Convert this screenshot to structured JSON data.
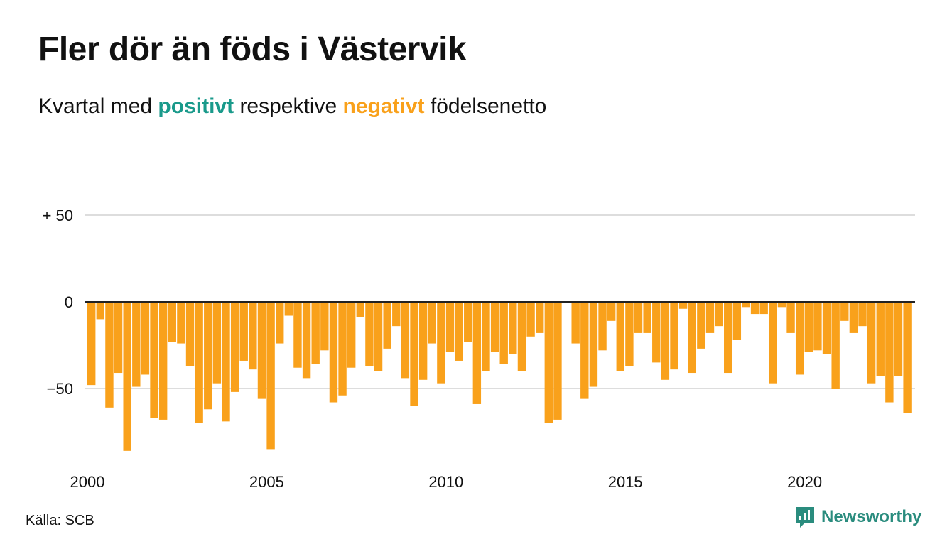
{
  "title": "Fler dör än föds i Västervik",
  "subtitle": {
    "prefix": "Kvartal med",
    "positive": "positivt",
    "middle": "respektive",
    "negative": "negativt",
    "suffix": "födelsenetto"
  },
  "source": "Källa: SCB",
  "brand": {
    "name": "Newsworthy",
    "icon": "newsworthy-logo-icon"
  },
  "colors": {
    "positive": "#1a9a8b",
    "negative": "#f9a11b",
    "brand": "#2a8c7e",
    "grid": "#dddddd",
    "axis": "#222222",
    "text": "#111111"
  },
  "chart_data": {
    "type": "bar",
    "title": "Fler dör än föds i Västervik",
    "subtitle": "Kvartal med positivt respektive negativt födelsenetto",
    "xlabel": "",
    "ylabel": "",
    "ylim": [
      -90,
      50
    ],
    "yticks": [
      {
        "value": 50,
        "label": "+ 50"
      },
      {
        "value": 0,
        "label": "0"
      },
      {
        "value": -50,
        "label": "−50"
      }
    ],
    "xticks": [
      {
        "value": 2000,
        "label": "2000"
      },
      {
        "value": 2005,
        "label": "2005"
      },
      {
        "value": 2010,
        "label": "2010"
      },
      {
        "value": 2015,
        "label": "2015"
      },
      {
        "value": 2020,
        "label": "2020"
      }
    ],
    "x_start_year": 2000,
    "periods_per_year": 4,
    "grid": true,
    "values": [
      -48,
      -10,
      -61,
      -41,
      -86,
      -49,
      -42,
      -67,
      -68,
      -23,
      -24,
      -37,
      -70,
      -62,
      -47,
      -69,
      -52,
      -34,
      -39,
      -56,
      -85,
      -24,
      -8,
      -38,
      -44,
      -36,
      -28,
      -58,
      -54,
      -38,
      -9,
      -37,
      -40,
      -27,
      -14,
      -44,
      -60,
      -45,
      -24,
      -47,
      -29,
      -34,
      -23,
      -59,
      -40,
      -29,
      -36,
      -30,
      -40,
      -20,
      -18,
      -70,
      -68,
      0,
      -24,
      -56,
      -49,
      -28,
      -11,
      -40,
      -37,
      -18,
      -18,
      -35,
      -45,
      -39,
      -4,
      -41,
      -27,
      -18,
      -14,
      -41,
      -22,
      -3,
      -7,
      -7,
      -47,
      -3,
      -18,
      -42,
      -29,
      -28,
      -30,
      -50,
      -11,
      -18,
      -14,
      -47,
      -43,
      -58,
      -43,
      -64
    ]
  }
}
